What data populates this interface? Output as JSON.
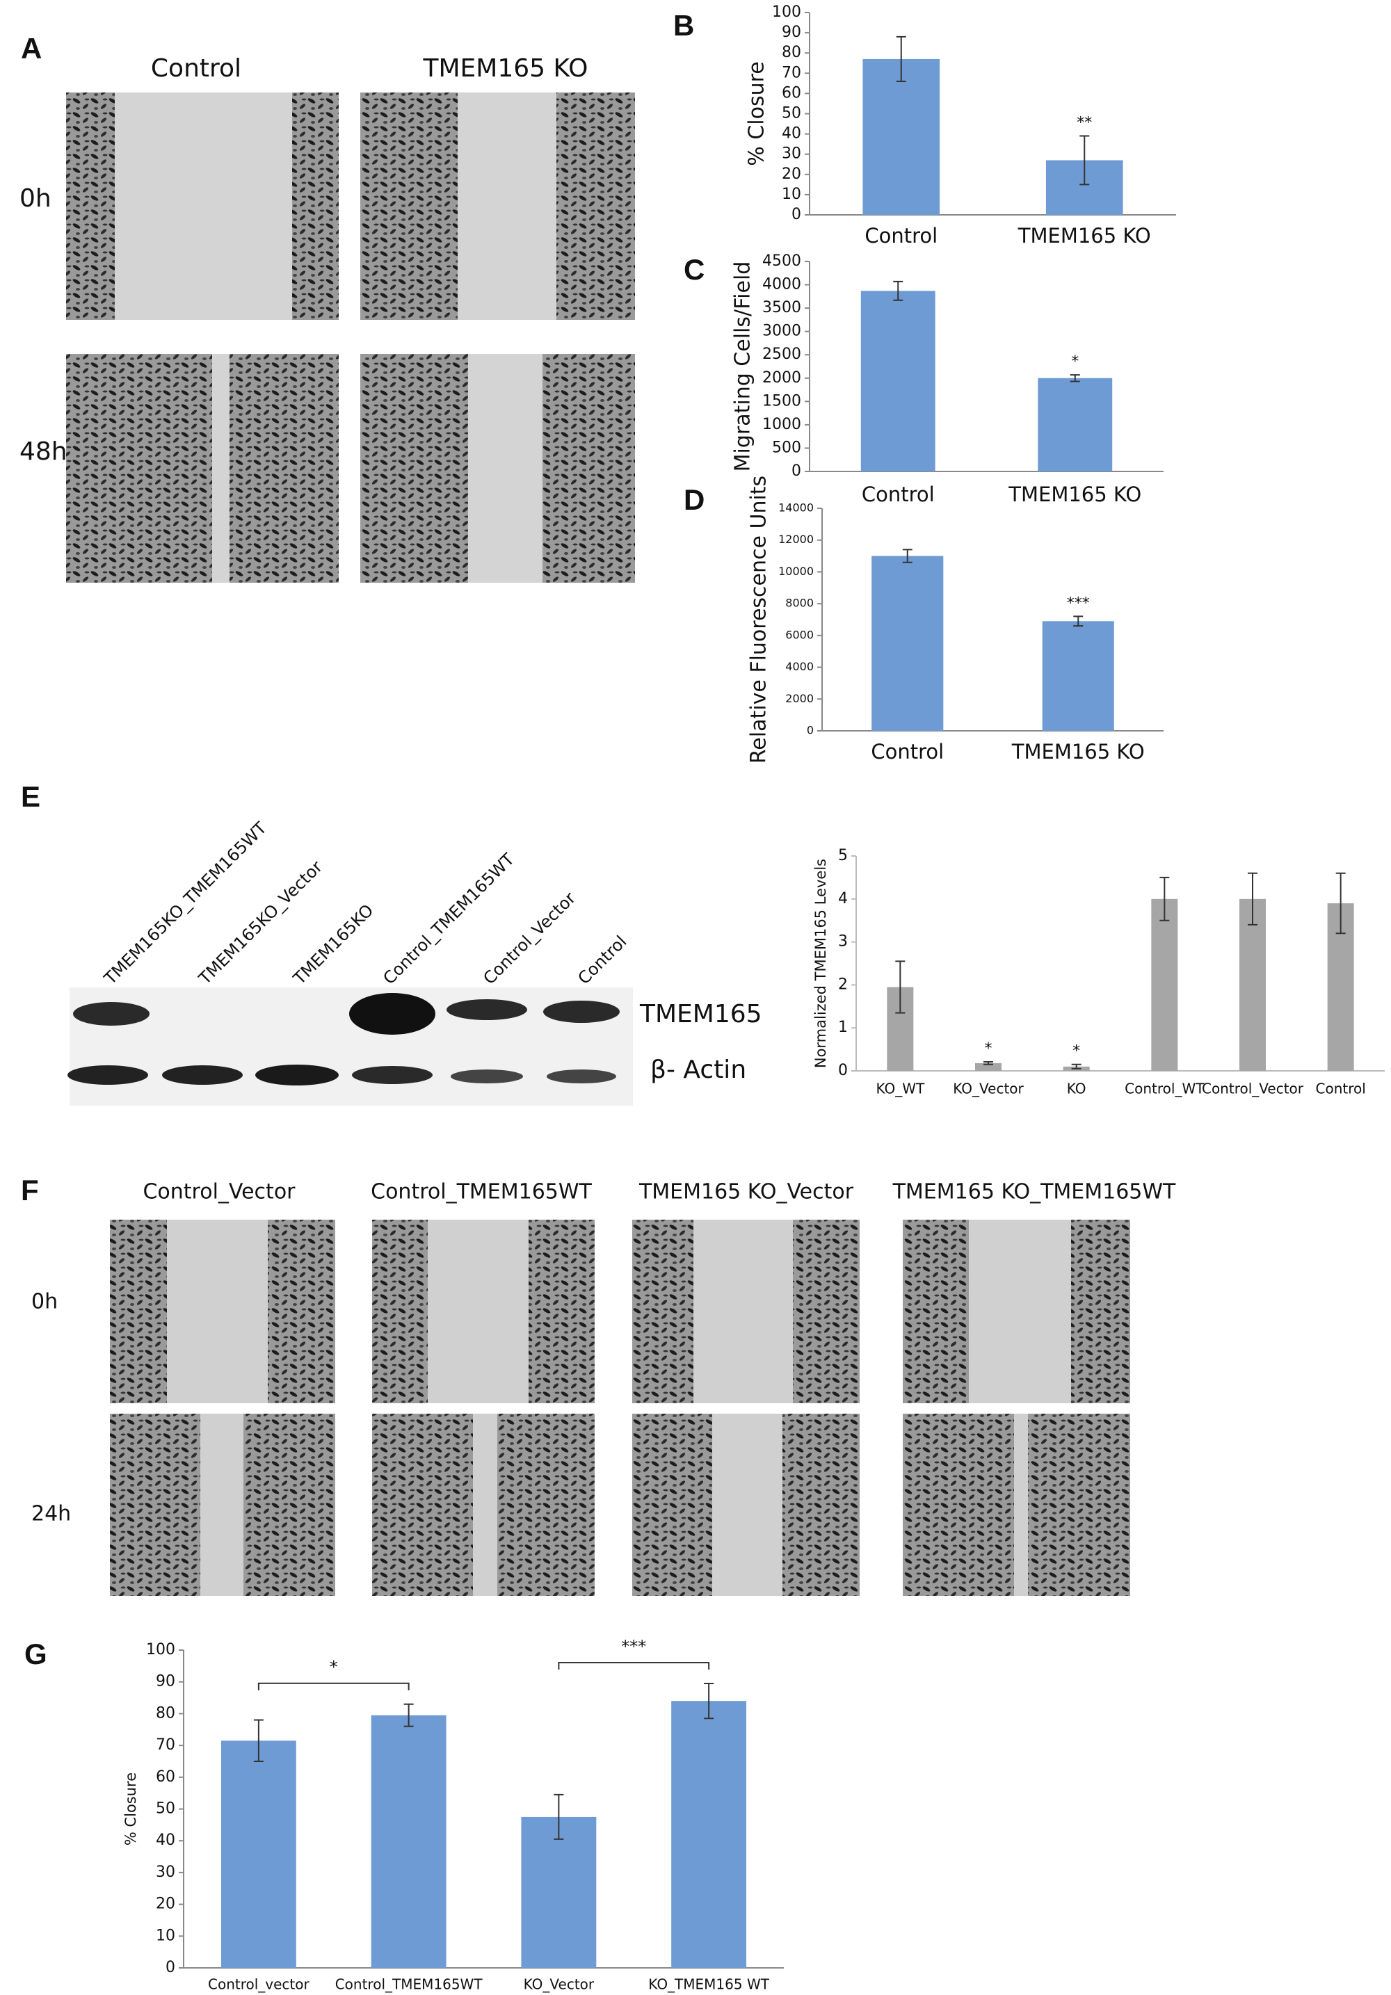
{
  "panel_a": {
    "letter": "A",
    "columns": [
      "Control",
      "TMEM165 KO"
    ],
    "rows": [
      "0h",
      "48h"
    ]
  },
  "panel_e_blot": {
    "letter": "E",
    "lanes": [
      "TMEM165KO_TMEM165WT",
      "TMEM165KO_Vector",
      "TMEM165KO",
      "Control_TMEM165WT",
      "Control_Vector",
      "Control"
    ],
    "bands": [
      "TMEM165",
      "β- Actin"
    ]
  },
  "panel_f": {
    "letter": "F",
    "columns": [
      "Control_Vector",
      "Control_TMEM165WT",
      "TMEM165 KO_Vector",
      "TMEM165 KO_TMEM165WT"
    ],
    "rows": [
      "0h",
      "24h"
    ]
  },
  "chart_data": [
    {
      "type": "bar",
      "panel": "B",
      "y_label": "% Closure",
      "categories": [
        "Control",
        "TMEM165 KO"
      ],
      "values": [
        77,
        27
      ],
      "errors": [
        11,
        12
      ],
      "significance": [
        null,
        "**"
      ],
      "color": "#6f9bd4",
      "ylim": [
        0,
        100
      ],
      "yticks": [
        0,
        10,
        20,
        30,
        40,
        50,
        60,
        70,
        80,
        90,
        100
      ]
    },
    {
      "type": "bar",
      "panel": "C",
      "y_label": "Migrating Cells/Field",
      "categories": [
        "Control",
        "TMEM165 KO"
      ],
      "values": [
        3870,
        2000
      ],
      "errors": [
        200,
        70
      ],
      "significance": [
        null,
        "*"
      ],
      "color": "#6f9bd4",
      "ylim": [
        0,
        4500
      ],
      "yticks": [
        0,
        500,
        1000,
        1500,
        2000,
        2500,
        3000,
        3500,
        4000,
        4500
      ]
    },
    {
      "type": "bar",
      "panel": "D",
      "y_label": "Relative Fluorescence Units",
      "categories": [
        "Control",
        "TMEM165 KO"
      ],
      "values": [
        11000,
        6900
      ],
      "errors": [
        400,
        300
      ],
      "significance": [
        null,
        "***"
      ],
      "color": "#6f9bd4",
      "ylim": [
        0,
        14000
      ],
      "yticks": [
        0,
        2000,
        4000,
        6000,
        8000,
        10000,
        12000,
        14000
      ]
    },
    {
      "type": "bar",
      "y_label": "Normalized TMEM165 Levels",
      "categories": [
        "KO_WT",
        "KO_Vector",
        "KO",
        "Control_WT",
        "Control_Vector",
        "Control"
      ],
      "values": [
        1.95,
        0.18,
        0.1,
        4.0,
        4.0,
        3.9
      ],
      "errors": [
        0.6,
        0.03,
        0.05,
        0.5,
        0.6,
        0.7
      ],
      "significance": [
        null,
        "*",
        "*",
        null,
        null,
        null
      ],
      "color": "#a6a6a6",
      "ylim": [
        0,
        5
      ],
      "yticks": [
        0,
        1,
        2,
        3,
        4,
        5
      ]
    },
    {
      "type": "bar",
      "panel": "G",
      "y_label": "% Closure",
      "categories": [
        "Control_vector",
        "Control_TMEM165WT",
        "KO_Vector",
        "KO_TMEM165 WT"
      ],
      "values": [
        71.5,
        79.5,
        47.5,
        84
      ],
      "errors": [
        6.5,
        3.5,
        7,
        5.5
      ],
      "brackets": [
        "*",
        "***"
      ],
      "color": "#6f9bd4",
      "ylim": [
        0,
        100
      ],
      "yticks": [
        0,
        10,
        20,
        30,
        40,
        50,
        60,
        70,
        80,
        90,
        100
      ]
    }
  ]
}
